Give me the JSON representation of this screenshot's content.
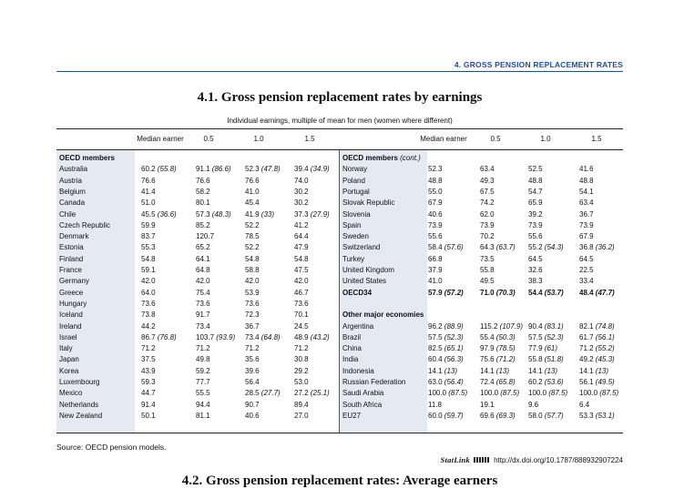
{
  "chapter_heading": "4. GROSS PENSION REPLACEMENT RATES",
  "table_title": "4.1.  Gross pension replacement rates by earnings",
  "subtitle": "Individual earnings, multiple of mean for men (women where different)",
  "column_headers": [
    "Median earner",
    "0.5",
    "1.0",
    "1.5"
  ],
  "left_rows": [
    {
      "type": "heading",
      "name": "OECD members"
    },
    {
      "name": "Australia",
      "v": [
        "60.2 (55.8)",
        "91.1 (86.6)",
        "52.3 (47.8)",
        "39.4 (34.9)"
      ]
    },
    {
      "name": "Austria",
      "v": [
        "76.6",
        "76.6",
        "76.6",
        "74.0"
      ]
    },
    {
      "name": "Belgium",
      "v": [
        "41.4",
        "58.2",
        "41.0",
        "30.2"
      ]
    },
    {
      "name": "Canada",
      "v": [
        "51.0",
        "80.1",
        "45.4",
        "30.2"
      ]
    },
    {
      "name": "Chile",
      "v": [
        "45.5 (36.6)",
        "57.3 (48.3)",
        "41.9 (33)",
        "37.3 (27.9)"
      ]
    },
    {
      "name": "Czech Republic",
      "v": [
        "59.9",
        "85.2",
        "52.2",
        "41.2"
      ]
    },
    {
      "name": "Denmark",
      "v": [
        "83.7",
        "120.7",
        "78.5",
        "64.4"
      ]
    },
    {
      "name": "Estonia",
      "v": [
        "55.3",
        "65.2",
        "52.2",
        "47.9"
      ]
    },
    {
      "name": "Finland",
      "v": [
        "54.8",
        "64.1",
        "54.8",
        "54.8"
      ]
    },
    {
      "name": "France",
      "v": [
        "59.1",
        "64.8",
        "58.8",
        "47.5"
      ]
    },
    {
      "name": "Germany",
      "v": [
        "42.0",
        "42.0",
        "42.0",
        "42.0"
      ]
    },
    {
      "name": "Greece",
      "v": [
        "64.0",
        "75.4",
        "53.9",
        "46.7"
      ]
    },
    {
      "name": "Hungary",
      "v": [
        "73.6",
        "73.6",
        "73.6",
        "73.6"
      ]
    },
    {
      "name": "Iceland",
      "v": [
        "73.8",
        "91.7",
        "72.3",
        "70.1"
      ]
    },
    {
      "name": "Ireland",
      "v": [
        "44.2",
        "73.4",
        "36.7",
        "24.5"
      ]
    },
    {
      "name": "Israel",
      "v": [
        "86.7 (76.8)",
        "103.7 (93.9)",
        "73.4 (64.8)",
        "48.9 (43.2)"
      ]
    },
    {
      "name": "Italy",
      "v": [
        "71.2",
        "71.2",
        "71.2",
        "71.2"
      ]
    },
    {
      "name": "Japan",
      "v": [
        "37.5",
        "49.8",
        "35.6",
        "30.8"
      ]
    },
    {
      "name": "Korea",
      "v": [
        "43.9",
        "59.2",
        "39.6",
        "29.2"
      ]
    },
    {
      "name": "Luxembourg",
      "v": [
        "59.3",
        "77.7",
        "56.4",
        "53.0"
      ]
    },
    {
      "name": "Mexico",
      "v": [
        "44.7",
        "55.5",
        "28.5 (27.7)",
        "27.2 (25.1)"
      ]
    },
    {
      "name": "Netherlands",
      "v": [
        "91.4",
        "94.4",
        "90.7",
        "89.4"
      ]
    },
    {
      "name": "New Zealand",
      "v": [
        "50.1",
        "81.1",
        "40.6",
        "27.0"
      ]
    }
  ],
  "right_rows": [
    {
      "type": "heading",
      "name": "OECD members",
      "cont": "(cont.)"
    },
    {
      "name": "Norway",
      "v": [
        "52.3",
        "63.4",
        "52.5",
        "41.6"
      ]
    },
    {
      "name": "Poland",
      "v": [
        "48.8",
        "49.3",
        "48.8",
        "48.8"
      ]
    },
    {
      "name": "Portugal",
      "v": [
        "55.0",
        "67.5",
        "54.7",
        "54.1"
      ]
    },
    {
      "name": "Slovak Republic",
      "v": [
        "67.9",
        "74.2",
        "65.9",
        "63.4"
      ]
    },
    {
      "name": "Slovenia",
      "v": [
        "40.6",
        "62.0",
        "39.2",
        "36.7"
      ]
    },
    {
      "name": "Spain",
      "v": [
        "73.9",
        "73.9",
        "73.9",
        "73.9"
      ]
    },
    {
      "name": "Sweden",
      "v": [
        "55.6",
        "70.2",
        "55.6",
        "67.9"
      ]
    },
    {
      "name": "Switzerland",
      "v": [
        "58.4 (57.6)",
        "64.3 (63.7)",
        "55.2 (54.3)",
        "36.8 (36.2)"
      ]
    },
    {
      "name": "Turkey",
      "v": [
        "66.8",
        "73.5",
        "64.5",
        "64.5"
      ]
    },
    {
      "name": "United Kingdom",
      "v": [
        "37.9",
        "55.8",
        "32.6",
        "22.5"
      ]
    },
    {
      "name": "United States",
      "v": [
        "41.0",
        "49.5",
        "38.3",
        "33.4"
      ]
    },
    {
      "name": "OECD34",
      "bold": true,
      "v": [
        "57.9 (57.2)",
        "71.0 (70.3)",
        "54.4 (53.7)",
        "48.4 (47.7)"
      ]
    },
    {
      "type": "blank",
      "name": ""
    },
    {
      "type": "heading",
      "name": "Other major economies"
    },
    {
      "name": "Argentina",
      "v": [
        "96.2 (88.9)",
        "115.2 (107.9)",
        "90.4 (83.1)",
        "82.1 (74.8)"
      ]
    },
    {
      "name": "Brazil",
      "v": [
        "57.5 (52.3)",
        "55.4 (50.3)",
        "57.5 (52.3)",
        "61.7 (56.1)"
      ]
    },
    {
      "name": "China",
      "v": [
        "82.5 (65.1)",
        "97.9 (78.5)",
        "77.9 (61)",
        "71.2 (55.2)"
      ]
    },
    {
      "name": "India",
      "v": [
        "60.4 (56.3)",
        "75.6 (71.2)",
        "55.8 (51.8)",
        "49.2 (45.3)"
      ]
    },
    {
      "name": "Indonesia",
      "v": [
        "14.1 (13)",
        "14.1 (13)",
        "14.1 (13)",
        "14.1 (13)"
      ]
    },
    {
      "name": "Russian Federation",
      "v": [
        "63.0 (56.4)",
        "72.4 (65.8)",
        "60.2 (53.6)",
        "56.1 (49.5)"
      ]
    },
    {
      "name": "Saudi Arabia",
      "v": [
        "100.0 (87.5)",
        "100.0 (87.5)",
        "100.0 (87.5)",
        "100.0 (87.5)"
      ]
    },
    {
      "name": "South Africa",
      "v": [
        "11.8",
        "19.1",
        "9.6",
        "6.4"
      ]
    },
    {
      "name": "EU27",
      "v": [
        "60.0 (59.7)",
        "69.6 (69.3)",
        "58.0 (57.7)",
        "53.3 (53.1)"
      ]
    }
  ],
  "source": "Source:  OECD pension models.",
  "statlink_label": "StatLink",
  "statlink_url": "http://dx.doi.org/10.1787/888932907224",
  "next_title": "4.2.  Gross pension replacement rates: Average earners"
}
